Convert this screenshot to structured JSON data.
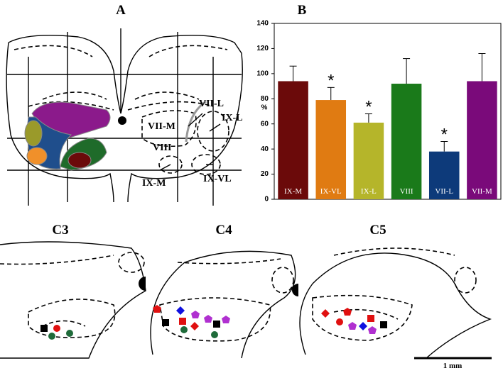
{
  "chart_data": {
    "type": "bar",
    "title": "B",
    "ylabel": "%",
    "categories": [
      "IX-M",
      "IX-VL",
      "IX-L",
      "VIII",
      "VII-L",
      "VII-M"
    ],
    "values": [
      94,
      79,
      61,
      92,
      38,
      94
    ],
    "errors": [
      12,
      10,
      7,
      20,
      8,
      22
    ],
    "markers": [
      null,
      "*",
      "*",
      null,
      "*",
      null
    ],
    "colors": [
      "#6b0a0a",
      "#e07b12",
      "#b5b52a",
      "#1a7a1a",
      "#0d3a7a",
      "#7a0a7a"
    ],
    "ylim": [
      0,
      140
    ],
    "yticks": [
      0,
      20,
      40,
      60,
      80,
      100,
      120,
      140
    ],
    "grid": false
  },
  "panel_labels": {
    "a": "A",
    "c3": "C3",
    "c4": "C4",
    "c5": "C5"
  },
  "diagram_labels": [
    "VII-L",
    "IX-L",
    "VII-M",
    "VIII",
    "IX-M",
    "IX-VL"
  ],
  "scale_bar": "1 mm"
}
